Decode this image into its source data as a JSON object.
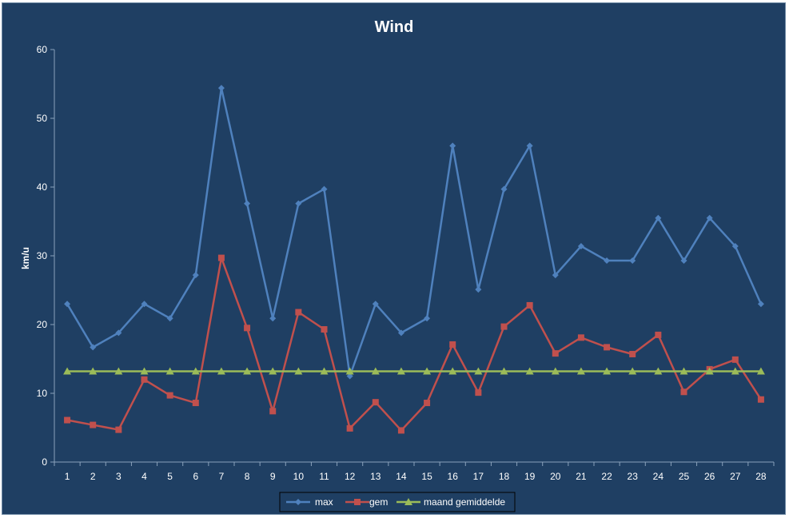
{
  "chart_data": {
    "type": "line",
    "title": "Wind",
    "xlabel": "",
    "ylabel": "km/u",
    "categories": [
      "1",
      "2",
      "3",
      "4",
      "5",
      "6",
      "7",
      "8",
      "9",
      "10",
      "11",
      "12",
      "13",
      "14",
      "15",
      "16",
      "17",
      "18",
      "19",
      "20",
      "21",
      "22",
      "23",
      "24",
      "25",
      "26",
      "27",
      "28"
    ],
    "ylim": [
      0,
      60
    ],
    "yticks": [
      "0",
      "10",
      "20",
      "30",
      "40",
      "50",
      "60"
    ],
    "grid": false,
    "legend_position": "bottom",
    "series": [
      {
        "name": "max",
        "color": "#4f81bd",
        "marker": "diamond",
        "values": [
          23,
          16.7,
          18.8,
          23,
          20.9,
          27.2,
          54.4,
          37.6,
          20.9,
          37.6,
          39.7,
          12.5,
          23,
          18.8,
          20.9,
          46,
          25.1,
          39.7,
          46,
          27.2,
          31.4,
          29.3,
          29.3,
          35.5,
          29.3,
          35.5,
          31.4,
          23
        ]
      },
      {
        "name": "gem",
        "color": "#c0504d",
        "marker": "square",
        "values": [
          6.1,
          5.4,
          4.7,
          12,
          9.7,
          8.6,
          29.7,
          19.5,
          7.4,
          21.8,
          19.3,
          4.9,
          8.7,
          4.6,
          8.6,
          17.1,
          10.1,
          19.7,
          22.8,
          15.8,
          18.1,
          16.7,
          15.7,
          18.5,
          10.2,
          13.5,
          14.9,
          9.1
        ]
      },
      {
        "name": "maand gemiddelde",
        "color": "#9bbb59",
        "marker": "triangle",
        "values": [
          13.2,
          13.2,
          13.2,
          13.2,
          13.2,
          13.2,
          13.2,
          13.2,
          13.2,
          13.2,
          13.2,
          13.2,
          13.2,
          13.2,
          13.2,
          13.2,
          13.2,
          13.2,
          13.2,
          13.2,
          13.2,
          13.2,
          13.2,
          13.2,
          13.2,
          13.2,
          13.2,
          13.2
        ]
      }
    ]
  }
}
